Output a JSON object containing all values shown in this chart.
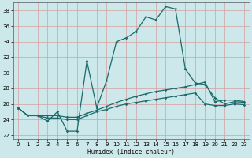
{
  "xlabel": "Humidex (Indice chaleur)",
  "xlim": [
    -0.5,
    23.5
  ],
  "ylim": [
    21.5,
    39.0
  ],
  "yticks": [
    22,
    24,
    26,
    28,
    30,
    32,
    34,
    36,
    38
  ],
  "xticks": [
    0,
    1,
    2,
    3,
    4,
    5,
    6,
    7,
    8,
    9,
    10,
    11,
    12,
    13,
    14,
    15,
    16,
    17,
    18,
    19,
    20,
    21,
    22,
    23
  ],
  "bg_color": "#cce8ea",
  "grid_color": "#b0cfd1",
  "line_color": "#1a6b6b",
  "line1_x": [
    0,
    1,
    2,
    3,
    4,
    5,
    6,
    7,
    8,
    9,
    10,
    11,
    12,
    13,
    14,
    15,
    16,
    17,
    18,
    19,
    20,
    21,
    22,
    23
  ],
  "line1_y": [
    25.5,
    24.5,
    24.5,
    23.8,
    25.0,
    22.5,
    22.5,
    31.5,
    25.5,
    29.0,
    34.0,
    34.5,
    35.3,
    37.2,
    36.8,
    38.5,
    38.2,
    30.5,
    28.7,
    28.5,
    26.8,
    26.0,
    26.3,
    26.2
  ],
  "line2_x": [
    0,
    1,
    2,
    3,
    4,
    5,
    6,
    7,
    8,
    9,
    10,
    11,
    12,
    13,
    14,
    15,
    16,
    17,
    18,
    19,
    20,
    21,
    22,
    23
  ],
  "line2_y": [
    25.5,
    24.5,
    24.5,
    24.5,
    24.5,
    24.3,
    24.3,
    24.8,
    25.2,
    25.7,
    26.2,
    26.6,
    27.0,
    27.3,
    27.6,
    27.8,
    28.0,
    28.2,
    28.5,
    28.8,
    26.3,
    26.5,
    26.5,
    26.3
  ],
  "line3_x": [
    0,
    1,
    2,
    3,
    4,
    5,
    6,
    7,
    8,
    9,
    10,
    11,
    12,
    13,
    14,
    15,
    16,
    17,
    18,
    19,
    20,
    21,
    22,
    23
  ],
  "line3_y": [
    25.5,
    24.5,
    24.5,
    24.2,
    24.2,
    24.0,
    24.0,
    24.5,
    25.0,
    25.3,
    25.7,
    26.0,
    26.2,
    26.4,
    26.6,
    26.8,
    27.0,
    27.2,
    27.4,
    26.0,
    25.8,
    25.8,
    26.0,
    25.9
  ]
}
